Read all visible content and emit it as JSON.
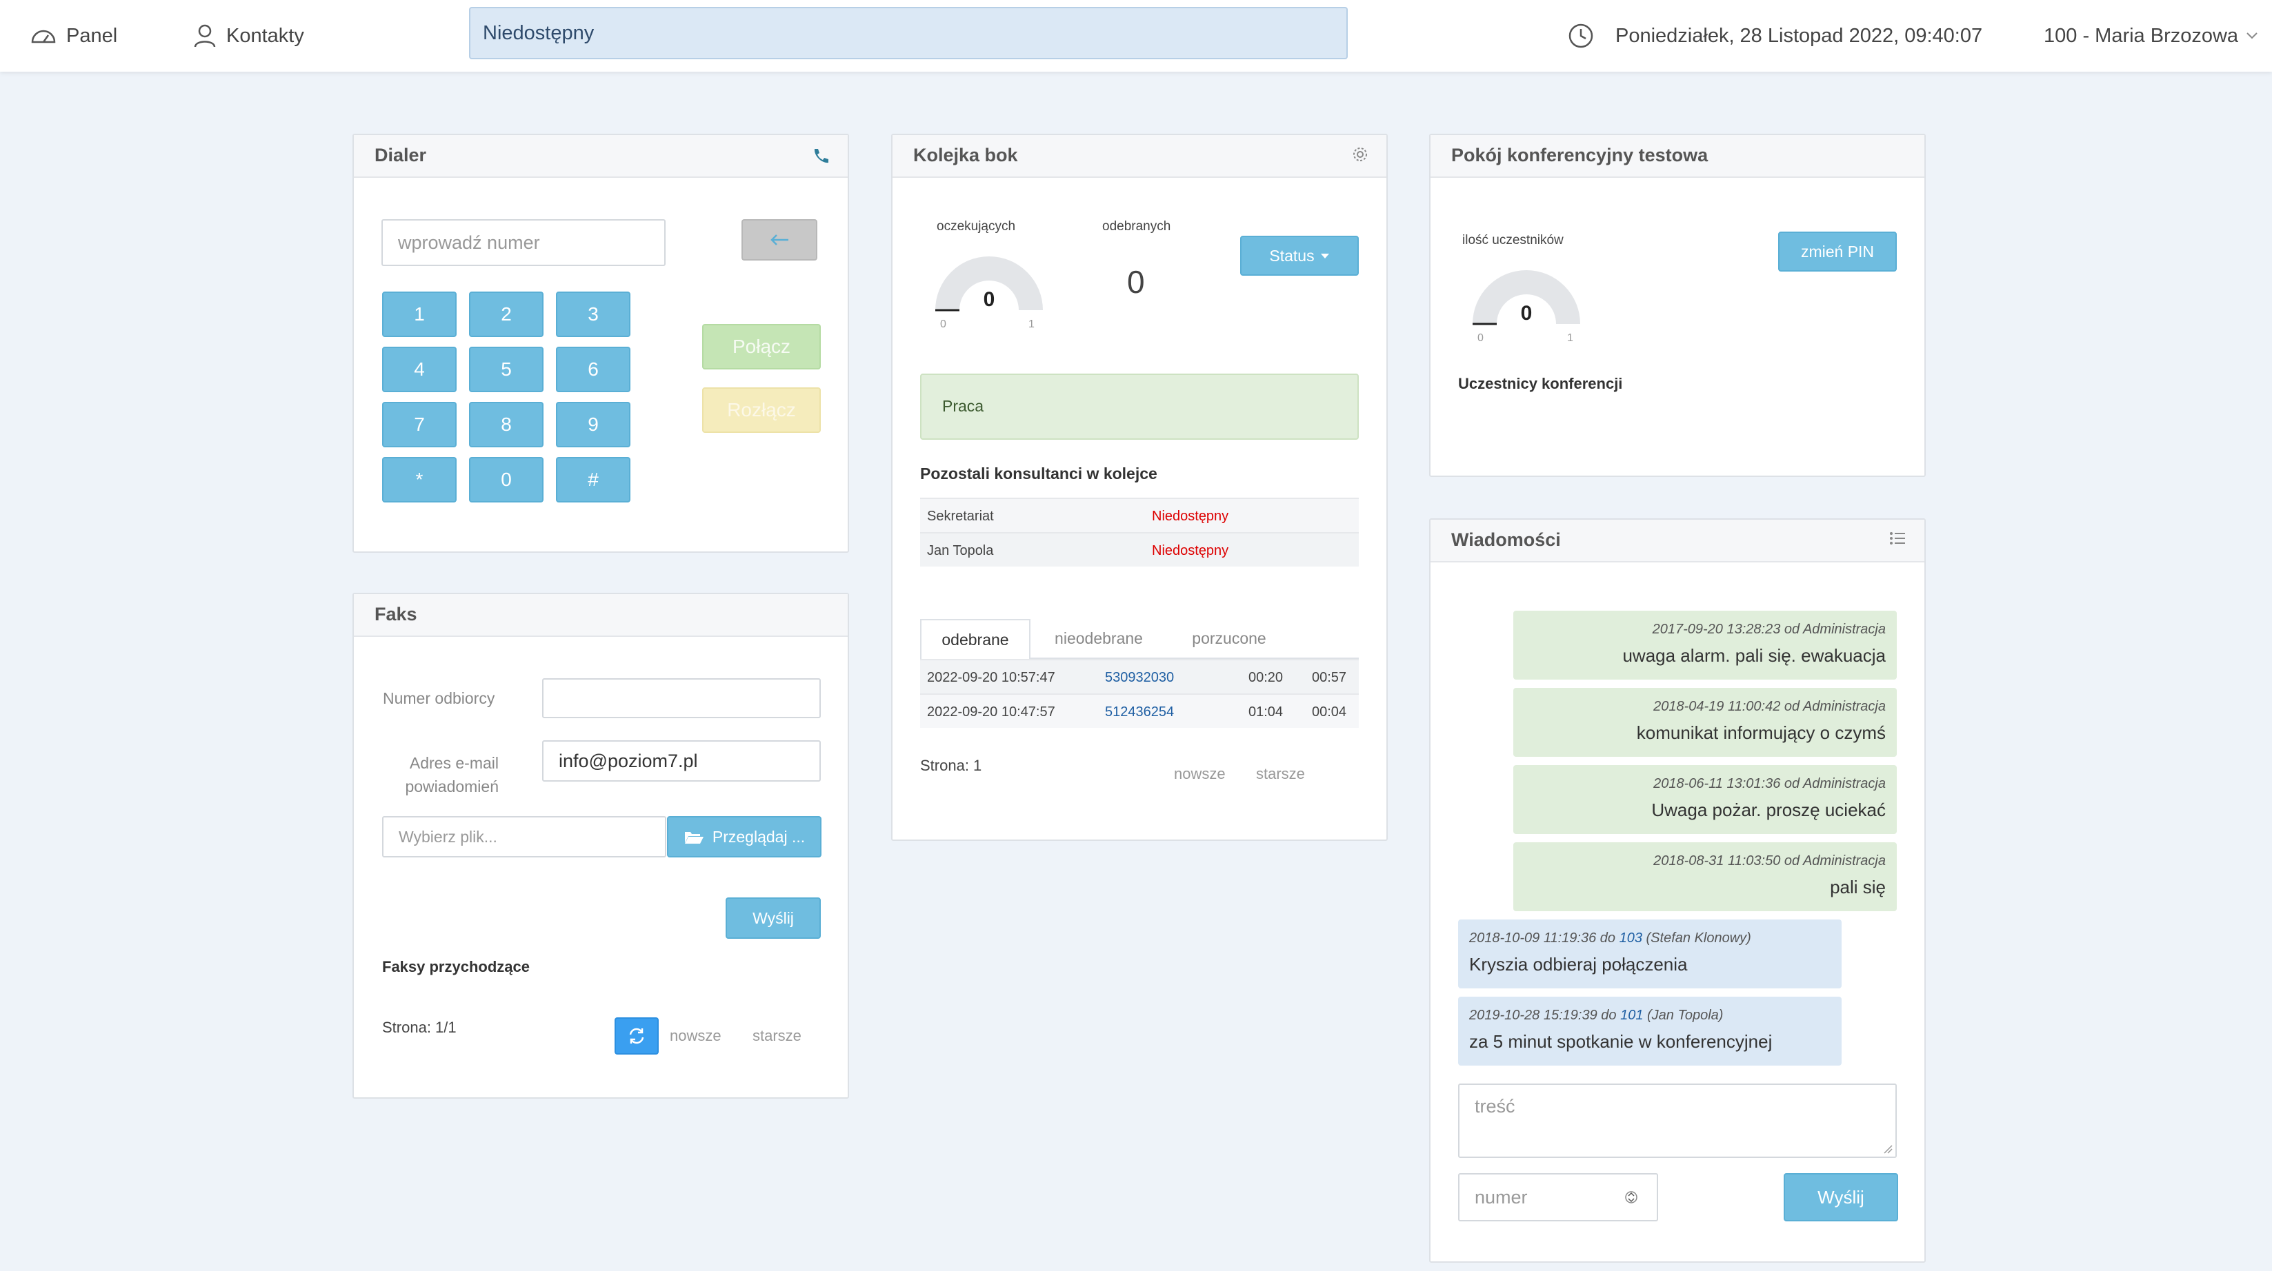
{
  "topbar": {
    "nav_panel": "Panel",
    "nav_contacts": "Kontakty",
    "status": "Niedostępny",
    "datetime": "Poniedziałek, 28 Listopad 2022, 09:40:07",
    "user": "100 - Maria Brzozowa"
  },
  "dialer": {
    "title": "Dialer",
    "number_placeholder": "wprowadź numer",
    "keys": [
      "1",
      "2",
      "3",
      "4",
      "5",
      "6",
      "7",
      "8",
      "9",
      "*",
      "0",
      "#"
    ],
    "connect": "Połącz",
    "disconnect": "Rozłącz"
  },
  "fax": {
    "title": "Faks",
    "recipient_label": "Numer odbiorcy",
    "email_label_1": "Adres e-mail",
    "email_label_2": "powiadomień",
    "email_value": "info@poziom7.pl",
    "file_placeholder": "Wybierz plik...",
    "browse": "Przeglądaj ...",
    "send": "Wyślij",
    "incoming_title": "Faksy przychodzące",
    "page": "Strona: 1/1",
    "newer": "nowsze",
    "older": "starsze"
  },
  "queue": {
    "title": "Kolejka bok",
    "waiting_label": "oczekujących",
    "waiting_value": "0",
    "gauge_min": "0",
    "gauge_max": "1",
    "answered_label": "odebranych",
    "answered_value": "0",
    "status_button": "Status",
    "work_status": "Praca",
    "consultants_title": "Pozostali konsultanci w kolejce",
    "consultants": [
      {
        "name": "Sekretariat",
        "status": "Niedostępny"
      },
      {
        "name": "Jan Topola",
        "status": "Niedostępny"
      }
    ],
    "tabs": [
      "odebrane",
      "nieodebrane",
      "porzucone"
    ],
    "calls": [
      {
        "datetime": "2022-09-20 10:57:47",
        "number": "530932030",
        "wait": "00:20",
        "duration": "00:57"
      },
      {
        "datetime": "2022-09-20 10:47:57",
        "number": "512436254",
        "wait": "01:04",
        "duration": "00:04"
      }
    ],
    "page": "Strona: 1",
    "newer": "nowsze",
    "older": "starsze"
  },
  "conference": {
    "title": "Pokój konferencyjny testowa",
    "participants_label": "ilość uczestników",
    "participants_value": "0",
    "gauge_min": "0",
    "gauge_max": "1",
    "change_pin": "zmień PIN",
    "participants_title": "Uczestnicy konferencji"
  },
  "messages": {
    "title": "Wiadomości",
    "items": [
      {
        "meta": "2017-09-20 13:28:23 od Administracja",
        "text": "uwaga alarm. pali się. ewakuacja"
      },
      {
        "meta": "2018-04-19 11:00:42 od Administracja",
        "text": "komunikat informujący o czymś"
      },
      {
        "meta": "2018-06-11 13:01:36 od Administracja",
        "text": "Uwaga pożar. proszę uciekać"
      },
      {
        "meta": "2018-08-31 11:03:50 od Administracja",
        "text": "pali się"
      }
    ],
    "sent": [
      {
        "meta_prefix": "2018-10-09 11:19:36 do ",
        "ext": "103",
        "meta_suffix": " (Stefan Klonowy)",
        "text": "Kryszia odbieraj połączenia"
      },
      {
        "meta_prefix": "2019-10-28 15:19:39 do ",
        "ext": "101",
        "meta_suffix": " (Jan Topola)",
        "text": "za 5 minut spotkanie w konferencyjnej"
      }
    ],
    "content_placeholder": "treść",
    "number_placeholder": "numer",
    "send": "Wyślij"
  }
}
